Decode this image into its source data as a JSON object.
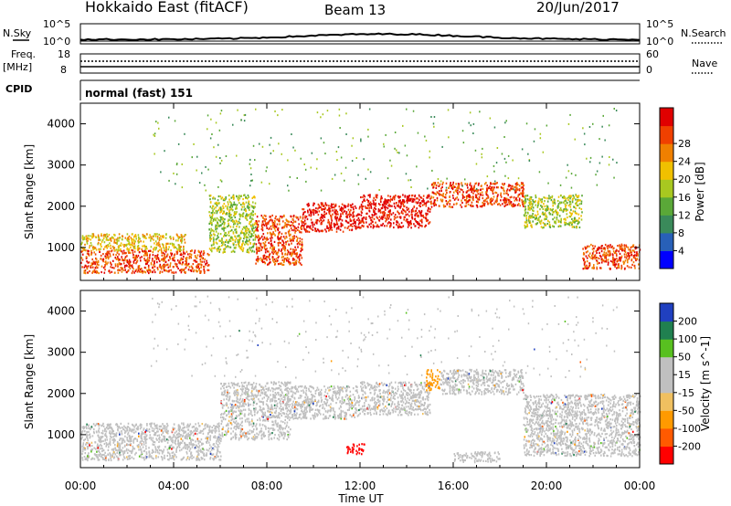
{
  "header": {
    "title": "Hokkaido East (fitACF)",
    "beam": "Beam 13",
    "date": "20/Jun/2017"
  },
  "aux": {
    "nsky_label": "N.Sky",
    "nsky_ticks": [
      "10^5",
      "10^0"
    ],
    "nsearch_label": "N.Search",
    "freq_label": "Freq.",
    "freq_unit": "[MHz]",
    "freq_ticks": [
      "18",
      "8"
    ],
    "nave_label": "Nave",
    "nave_ticks": [
      "60",
      "0"
    ],
    "cpid_label": "CPID",
    "cpid_value": "normal (fast) 151"
  },
  "colors": {
    "power": [
      "#0000ff",
      "#2860b8",
      "#3a8a5a",
      "#5aa838",
      "#a8c820",
      "#f0c000",
      "#f08000",
      "#f04000",
      "#e00000"
    ],
    "velocity": [
      "#ff0000",
      "#ff5a00",
      "#ff9a00",
      "#f0c060",
      "#c0c0c0",
      "#c0c0c0",
      "#58c020",
      "#208050",
      "#2040c0"
    ],
    "grey": "#c0c0c0"
  },
  "chart_data": [
    {
      "type": "heatmap",
      "name": "power",
      "xlabel": "Time UT",
      "ylabel": "Slant Range [km]",
      "x_tick_labels": [
        "00:00",
        "04:00",
        "08:00",
        "12:00",
        "16:00",
        "20:00",
        "00:00"
      ],
      "x_hours": [
        0,
        4,
        8,
        12,
        16,
        20,
        24
      ],
      "xlim": [
        0,
        24
      ],
      "y_ticks": [
        1000,
        2000,
        3000,
        4000
      ],
      "ylim": [
        200,
        4500
      ],
      "colorbar": {
        "label": "Power [dB]",
        "ticks": [
          4,
          8,
          12,
          16,
          20,
          24,
          28
        ],
        "range": [
          0,
          32
        ]
      },
      "bands": [
        {
          "start": 0,
          "end": 5.5,
          "low": 400,
          "high": 950,
          "value": 28
        },
        {
          "start": 0,
          "end": 4.5,
          "low": 950,
          "high": 1350,
          "value": 18
        },
        {
          "start": 5.5,
          "end": 7.5,
          "low": 900,
          "high": 2300,
          "value": 16
        },
        {
          "start": 7.5,
          "end": 9.5,
          "low": 600,
          "high": 1800,
          "value": 26
        },
        {
          "start": 9.5,
          "end": 12,
          "low": 1400,
          "high": 2100,
          "value": 30
        },
        {
          "start": 12,
          "end": 15,
          "low": 1500,
          "high": 2300,
          "value": 30
        },
        {
          "start": 15,
          "end": 19,
          "low": 2000,
          "high": 2600,
          "value": 28
        },
        {
          "start": 19,
          "end": 21.5,
          "low": 1500,
          "high": 2300,
          "value": 16
        },
        {
          "start": 21.5,
          "end": 24,
          "low": 500,
          "high": 1100,
          "value": 26
        }
      ]
    },
    {
      "type": "heatmap",
      "name": "velocity",
      "xlabel": "Time UT",
      "ylabel": "Slant Range [km]",
      "x_tick_labels": [
        "00:00",
        "04:00",
        "08:00",
        "12:00",
        "16:00",
        "20:00",
        "00:00"
      ],
      "x_hours": [
        0,
        4,
        8,
        12,
        16,
        20,
        24
      ],
      "xlim": [
        0,
        24
      ],
      "y_ticks": [
        1000,
        2000,
        3000,
        4000
      ],
      "ylim": [
        200,
        4500
      ],
      "colorbar": {
        "label": "Velocity [m s^-1]",
        "ticks": [
          -200,
          -100,
          -50,
          -15,
          15,
          50,
          100,
          200
        ],
        "tick_labels": [
          "-200",
          "-100",
          "-50",
          "-15",
          "15",
          "50",
          "100",
          "200"
        ]
      },
      "bands": [
        {
          "start": 0,
          "end": 6,
          "low": 400,
          "high": 1300,
          "value": 0
        },
        {
          "start": 6,
          "end": 9,
          "low": 900,
          "high": 2300,
          "value": 0
        },
        {
          "start": 9,
          "end": 12,
          "low": 1400,
          "high": 2200,
          "value": 0
        },
        {
          "start": 12,
          "end": 15,
          "low": 1500,
          "high": 2300,
          "value": 0
        },
        {
          "start": 14.8,
          "end": 15.4,
          "low": 2100,
          "high": 2600,
          "value": -50
        },
        {
          "start": 15.4,
          "end": 19,
          "low": 2000,
          "high": 2600,
          "value": 0
        },
        {
          "start": 19,
          "end": 24,
          "low": 500,
          "high": 2000,
          "value": 0
        },
        {
          "start": 11.4,
          "end": 12.2,
          "low": 550,
          "high": 800,
          "value": -200
        },
        {
          "start": 16,
          "end": 18,
          "low": 350,
          "high": 600,
          "value": 50
        }
      ]
    }
  ]
}
